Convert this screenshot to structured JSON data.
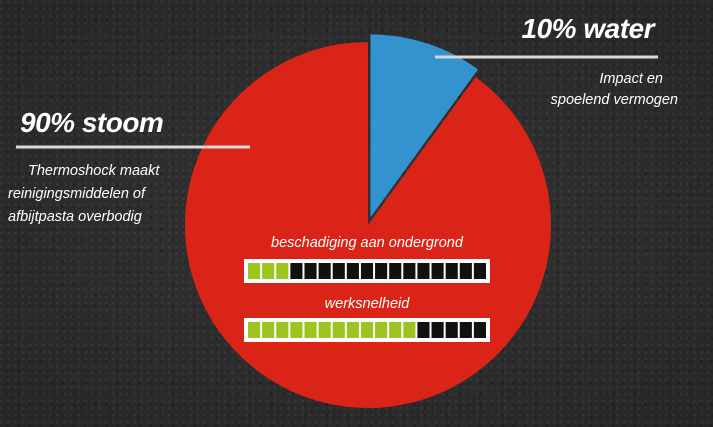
{
  "chart_data": {
    "type": "pie",
    "slices": [
      {
        "label": "90% stoom",
        "value": 90,
        "color": "#da2417",
        "description": [
          "Thermoshock maakt",
          "reinigingsmiddelen of",
          "afbijtpasta overbodig"
        ]
      },
      {
        "label": "10% water",
        "value": 10,
        "color": "#3393cf",
        "description": [
          "Impact en",
          "spoelend vermogen"
        ]
      }
    ],
    "bars": [
      {
        "label": "beschadiging aan ondergrond",
        "segments_total": 17,
        "segments_filled": 3
      },
      {
        "label": "werksnelheid",
        "segments_total": 17,
        "segments_filled": 12
      }
    ],
    "colors": {
      "fill": "#9dc51f",
      "empty": "#111111",
      "frame": "#ffffff",
      "line": "#d9d9d9"
    }
  }
}
